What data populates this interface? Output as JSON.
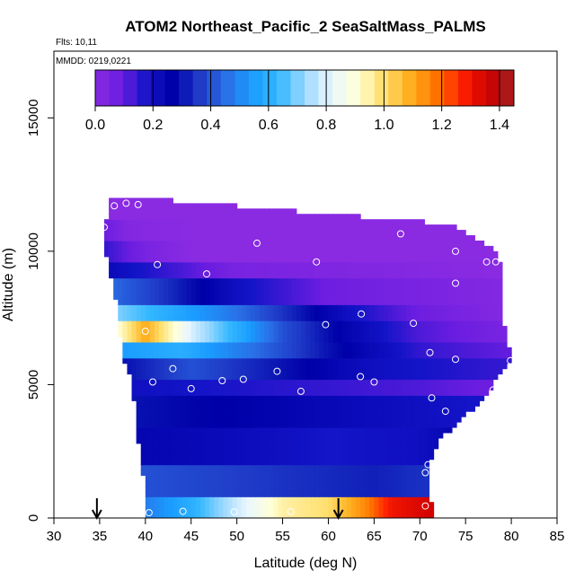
{
  "chart_data": {
    "type": "heatmap",
    "title": "ATOM2 Northeast_Pacific_2 SeaSaltMass_PALMS",
    "flights_text": "Flts: 10,11",
    "mmdd_text": "MMDD: 0219,0221",
    "xlabel": "Latitude (deg N)",
    "ylabel": "Altitude (m)",
    "xlim": [
      30,
      85
    ],
    "ylim": [
      0,
      17500
    ],
    "xticks": [
      "30",
      "35",
      "40",
      "45",
      "50",
      "55",
      "60",
      "65",
      "70",
      "75",
      "80",
      "85"
    ],
    "yticks": [
      "0",
      "5000",
      "10000",
      "15000"
    ],
    "colorbar": {
      "range": [
        0,
        1.45
      ],
      "ticks": [
        "0.0",
        "0.2",
        "0.4",
        "0.6",
        "0.8",
        "1.0",
        "1.2",
        "1.4"
      ],
      "colors": [
        "#8a2be2",
        "#6a1de0",
        "#1414c8",
        "#0000a8",
        "#1f3bc8",
        "#2a6fe6",
        "#1a9cff",
        "#35b8ff",
        "#9ad8ff",
        "#e8f6ff",
        "#ffffd8",
        "#ffe070",
        "#ffb020",
        "#ff7800",
        "#ff2000",
        "#d00000",
        "#a02020"
      ]
    },
    "arrows_lat": [
      34.7,
      61.1
    ],
    "grid": false,
    "legend": "colorbar top",
    "domain_profile": [
      [
        0,
        40.0,
        71.5
      ],
      [
        1000,
        40.0,
        71.0
      ],
      [
        2000,
        39.6,
        70.8
      ],
      [
        3000,
        39.2,
        72.3
      ],
      [
        4000,
        38.9,
        75.5
      ],
      [
        5000,
        38.6,
        78.0
      ],
      [
        6000,
        37.5,
        80.0
      ],
      [
        7000,
        37.2,
        79.3
      ],
      [
        8000,
        36.9,
        78.8
      ],
      [
        9000,
        36.3,
        79.0
      ],
      [
        10000,
        35.6,
        78.5
      ],
      [
        11000,
        35.6,
        73.7
      ],
      [
        12000,
        36.2,
        39.6
      ]
    ],
    "bands": [
      [
        0,
        800,
        [
          [
            40,
            0.48
          ],
          [
            45,
            0.6
          ],
          [
            50,
            0.78
          ],
          [
            55,
            0.95
          ],
          [
            60,
            1.0
          ],
          [
            64,
            1.15
          ],
          [
            67,
            1.3
          ],
          [
            71,
            1.35
          ]
        ]
      ],
      [
        800,
        2000,
        [
          [
            40,
            0.4
          ],
          [
            55,
            0.35
          ],
          [
            65,
            0.32
          ],
          [
            71,
            0.35
          ]
        ]
      ],
      [
        2000,
        3500,
        [
          [
            38,
            0.25
          ],
          [
            50,
            0.22
          ],
          [
            60,
            0.18
          ],
          [
            70,
            0.2
          ],
          [
            74,
            0.25
          ]
        ]
      ],
      [
        3500,
        4600,
        [
          [
            38,
            0.3
          ],
          [
            55,
            0.25
          ],
          [
            70,
            0.2
          ],
          [
            76,
            0.18
          ]
        ]
      ],
      [
        4600,
        5300,
        [
          [
            38,
            0.2
          ],
          [
            55,
            0.16
          ],
          [
            70,
            0.12
          ],
          [
            78,
            0.08
          ]
        ]
      ],
      [
        5300,
        6000,
        [
          [
            38,
            0.3
          ],
          [
            45,
            0.4
          ],
          [
            55,
            0.3
          ],
          [
            65,
            0.2
          ],
          [
            78,
            0.15
          ]
        ]
      ],
      [
        6000,
        6600,
        [
          [
            38,
            0.55
          ],
          [
            44,
            0.6
          ],
          [
            52,
            0.45
          ],
          [
            60,
            0.3
          ],
          [
            70,
            0.15
          ],
          [
            79,
            0.1
          ]
        ]
      ],
      [
        6600,
        7400,
        [
          [
            37,
            0.9
          ],
          [
            40,
            1.1
          ],
          [
            45,
            0.8
          ],
          [
            50,
            0.6
          ],
          [
            55,
            0.4
          ],
          [
            62,
            0.25
          ],
          [
            70,
            0.12
          ],
          [
            79,
            0.05
          ]
        ]
      ],
      [
        7400,
        8100,
        [
          [
            37,
            0.7
          ],
          [
            42,
            0.6
          ],
          [
            48,
            0.5
          ],
          [
            55,
            0.35
          ],
          [
            62,
            0.2
          ],
          [
            70,
            0.08
          ],
          [
            79,
            0.02
          ]
        ]
      ],
      [
        8100,
        9000,
        [
          [
            36,
            0.45
          ],
          [
            42,
            0.35
          ],
          [
            50,
            0.2
          ],
          [
            60,
            0.08
          ],
          [
            79,
            0.02
          ]
        ]
      ],
      [
        9000,
        9700,
        [
          [
            36,
            0.22
          ],
          [
            42,
            0.15
          ],
          [
            50,
            0.05
          ],
          [
            79,
            0.0
          ]
        ]
      ],
      [
        9700,
        10400,
        [
          [
            35.6,
            0.15
          ],
          [
            40,
            0.05
          ],
          [
            45,
            0.0
          ],
          [
            79,
            0.0
          ]
        ]
      ],
      [
        10400,
        11200,
        [
          [
            35.6,
            0.08
          ],
          [
            38,
            0.02
          ],
          [
            45,
            0.0
          ],
          [
            74,
            0.0
          ]
        ]
      ],
      [
        11200,
        12000,
        [
          [
            36,
            0.0
          ],
          [
            40,
            0.0
          ]
        ]
      ]
    ],
    "points": [
      [
        40.4,
        200
      ],
      [
        44.1,
        250
      ],
      [
        49.7,
        230
      ],
      [
        55.9,
        240
      ],
      [
        70.6,
        450
      ],
      [
        70.9,
        2000
      ],
      [
        70.6,
        1700
      ],
      [
        72.8,
        4000
      ],
      [
        71.3,
        4500
      ],
      [
        78.0,
        4800
      ],
      [
        65.0,
        5100
      ],
      [
        63.5,
        5300
      ],
      [
        54.4,
        5500
      ],
      [
        50.7,
        5200
      ],
      [
        48.4,
        5150
      ],
      [
        45.0,
        4850
      ],
      [
        40.8,
        5100
      ],
      [
        43.0,
        5600
      ],
      [
        57.0,
        4750
      ],
      [
        73.9,
        5950
      ],
      [
        71.1,
        6200
      ],
      [
        79.9,
        5900
      ],
      [
        40.0,
        7000
      ],
      [
        59.7,
        7250
      ],
      [
        63.6,
        7650
      ],
      [
        69.3,
        7300
      ],
      [
        46.7,
        9150
      ],
      [
        41.3,
        9500
      ],
      [
        58.7,
        9600
      ],
      [
        73.9,
        8800
      ],
      [
        52.2,
        10300
      ],
      [
        73.9,
        10000
      ],
      [
        77.3,
        9600
      ],
      [
        78.3,
        9600
      ],
      [
        67.9,
        10650
      ],
      [
        35.5,
        10900
      ],
      [
        36.6,
        11700
      ],
      [
        37.9,
        11800
      ],
      [
        39.2,
        11750
      ]
    ]
  }
}
